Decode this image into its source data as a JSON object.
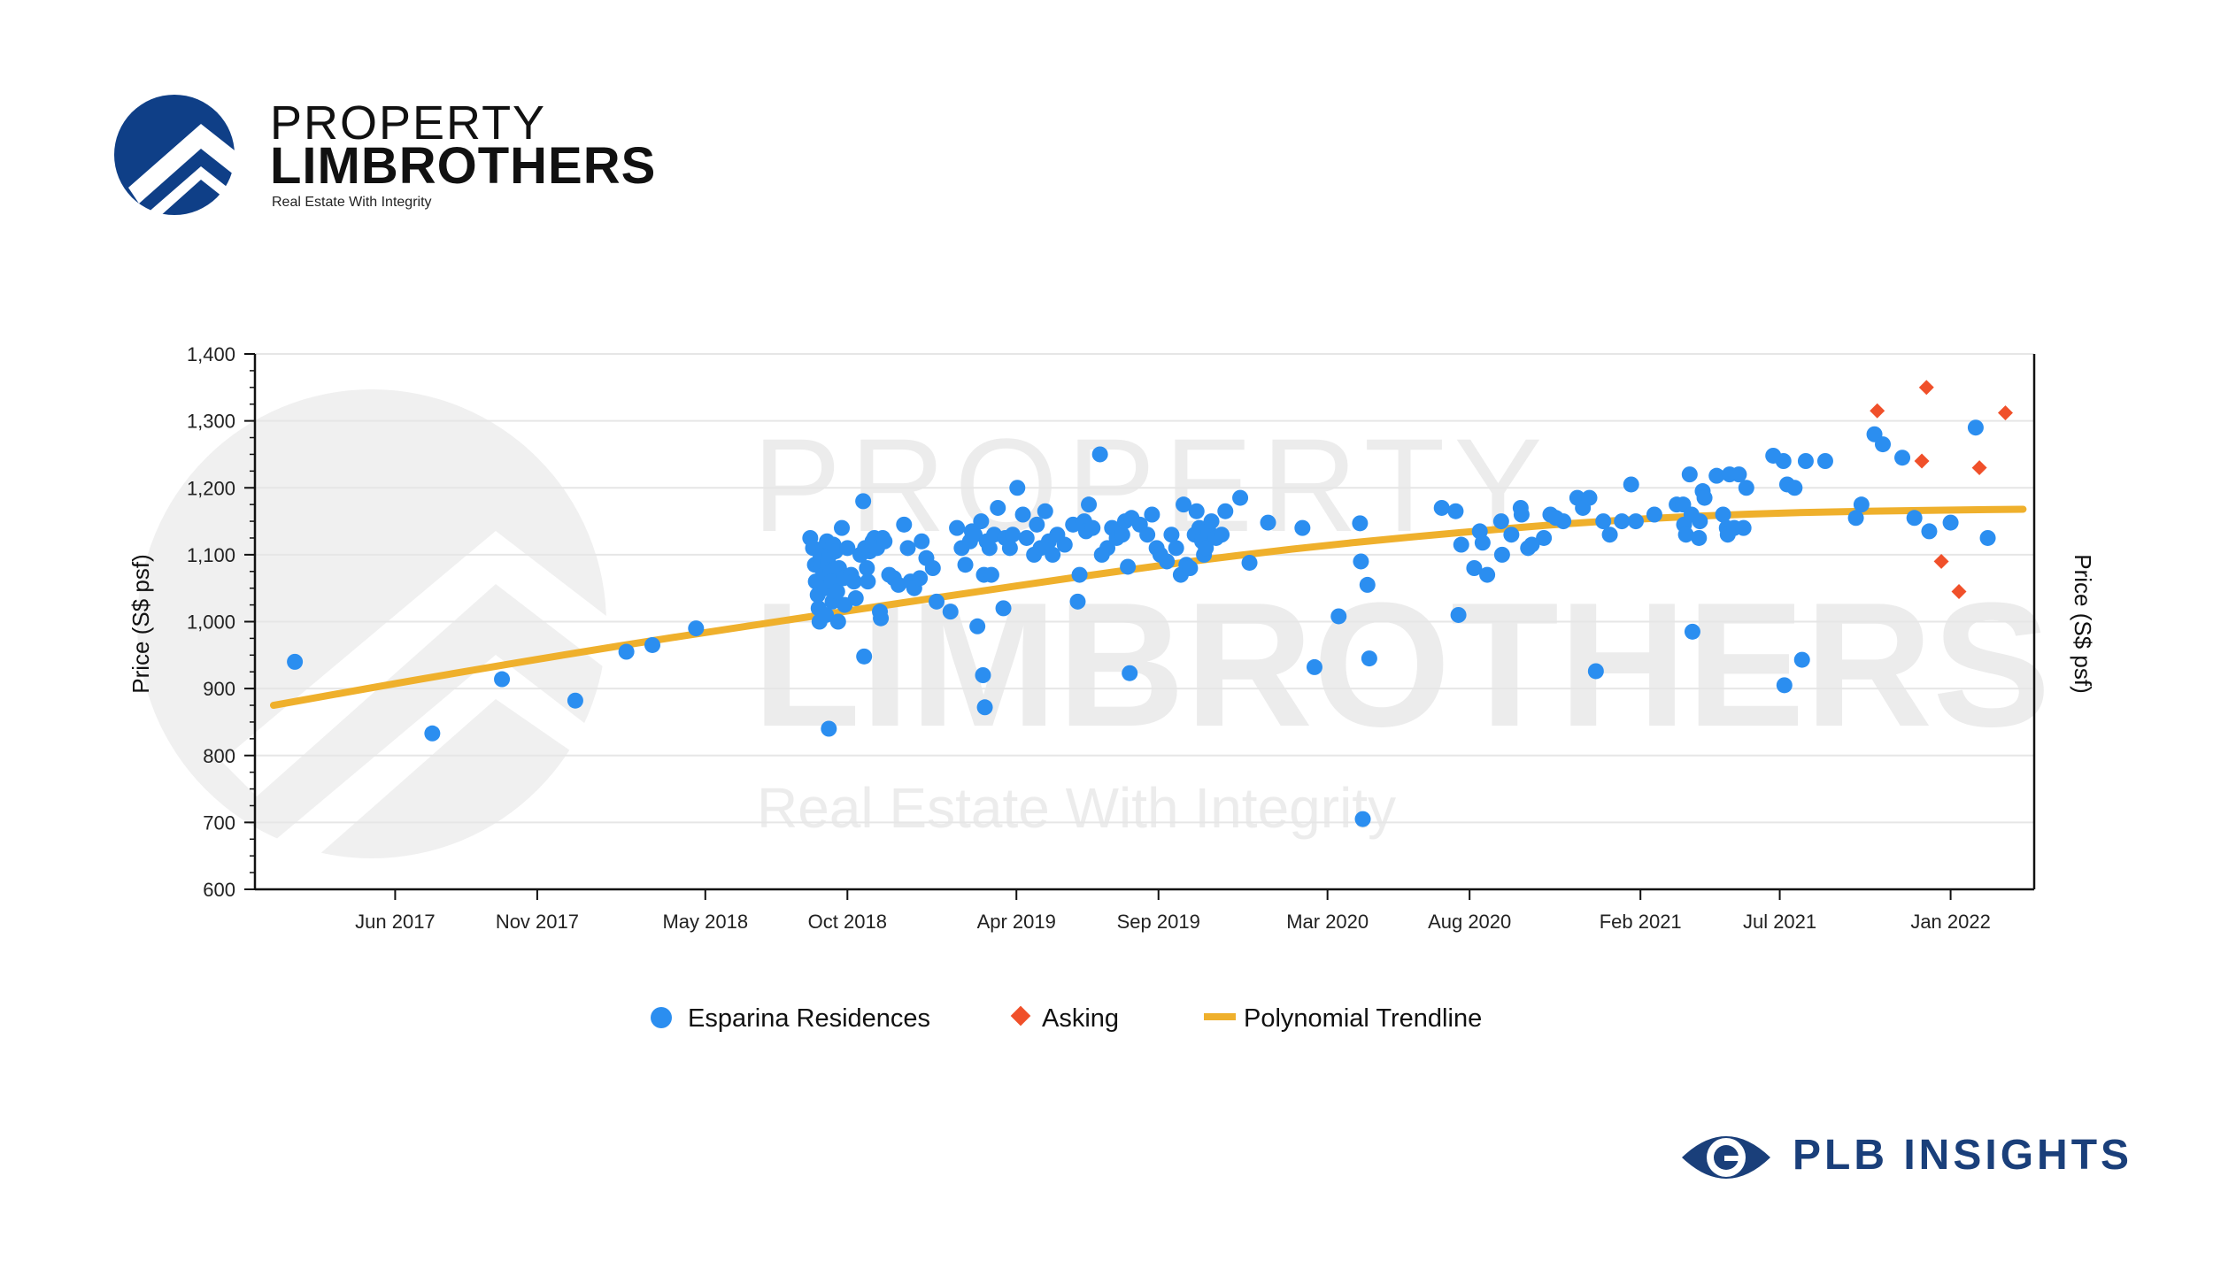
{
  "brand": {
    "line1": "PROPERTY",
    "line2": "LIMBROTHERS",
    "tagline": "Real Estate With Integrity",
    "color": "#0f3f87",
    "insights_label": "PLB INSIGHTS",
    "insights_color": "#1a3f7a"
  },
  "chart_data": {
    "type": "scatter",
    "title": "",
    "xlabel": "",
    "ylabel": "Price (S$ psf)",
    "ylabel_right": "Price (S$ psf)",
    "ylim": [
      600,
      1400
    ],
    "yticks": [
      600,
      700,
      800,
      900,
      1000,
      1100,
      1200,
      1300,
      1400
    ],
    "ytick_labels": [
      "600",
      "700",
      "800",
      "900",
      "1,000",
      "1,100",
      "1,200",
      "1,300",
      "1,400"
    ],
    "xlim": [
      "2017-01-01",
      "2022-04-01"
    ],
    "xticks": [
      "2017-06-01",
      "2017-11-01",
      "2018-05-01",
      "2018-10-01",
      "2019-04-01",
      "2019-09-01",
      "2020-03-01",
      "2020-08-01",
      "2021-02-01",
      "2021-07-01",
      "2022-01-01"
    ],
    "xtick_labels": [
      "Jun 2017",
      "Nov 2017",
      "May 2018",
      "Oct 2018",
      "Apr 2019",
      "Sep 2019",
      "Mar 2020",
      "Aug 2020",
      "Feb 2021",
      "Jul 2021",
      "Jan 2022"
    ],
    "grid": true,
    "legend_position": "bottom",
    "series": [
      {
        "name": "Esparina Residences",
        "marker": "circle",
        "color": "#2b8ef0",
        "points": [
          [
            "2017-02-13",
            940
          ],
          [
            "2017-07-11",
            833
          ],
          [
            "2017-09-24",
            914
          ],
          [
            "2017-12-12",
            882
          ],
          [
            "2018-02-05",
            955
          ],
          [
            "2018-03-05",
            965
          ],
          [
            "2018-04-21",
            990
          ],
          [
            "2018-08-22",
            1125
          ],
          [
            "2018-08-25",
            1110
          ],
          [
            "2018-08-27",
            1085
          ],
          [
            "2018-08-28",
            1060
          ],
          [
            "2018-08-30",
            1040
          ],
          [
            "2018-08-31",
            1020
          ],
          [
            "2018-09-01",
            1000
          ],
          [
            "2018-09-02",
            1095
          ],
          [
            "2018-09-03",
            1080
          ],
          [
            "2018-09-05",
            1110
          ],
          [
            "2018-09-06",
            1070
          ],
          [
            "2018-09-07",
            1050
          ],
          [
            "2018-09-08",
            1010
          ],
          [
            "2018-09-09",
            1120
          ],
          [
            "2018-09-10",
            1090
          ],
          [
            "2018-09-11",
            840
          ],
          [
            "2018-09-12",
            1100
          ],
          [
            "2018-09-13",
            1075
          ],
          [
            "2018-09-14",
            1060
          ],
          [
            "2018-09-15",
            1030
          ],
          [
            "2018-09-16",
            1115
          ],
          [
            "2018-09-18",
            1105
          ],
          [
            "2018-09-20",
            1045
          ],
          [
            "2018-09-21",
            1000
          ],
          [
            "2018-09-22",
            1080
          ],
          [
            "2018-09-25",
            1140
          ],
          [
            "2018-09-27",
            1065
          ],
          [
            "2018-09-28",
            1025
          ],
          [
            "2018-10-01",
            1110
          ],
          [
            "2018-10-05",
            1070
          ],
          [
            "2018-10-08",
            1060
          ],
          [
            "2018-10-10",
            1035
          ],
          [
            "2018-10-15",
            1100
          ],
          [
            "2018-10-18",
            1180
          ],
          [
            "2018-10-19",
            948
          ],
          [
            "2018-10-20",
            1110
          ],
          [
            "2018-10-22",
            1080
          ],
          [
            "2018-10-23",
            1060
          ],
          [
            "2018-10-25",
            1105
          ],
          [
            "2018-10-28",
            1120
          ],
          [
            "2018-10-30",
            1125
          ],
          [
            "2018-11-02",
            1110
          ],
          [
            "2018-11-05",
            1015
          ],
          [
            "2018-11-06",
            1005
          ],
          [
            "2018-11-08",
            1125
          ],
          [
            "2018-11-10",
            1120
          ],
          [
            "2018-11-15",
            1070
          ],
          [
            "2018-11-20",
            1065
          ],
          [
            "2018-11-25",
            1055
          ],
          [
            "2018-12-01",
            1145
          ],
          [
            "2018-12-05",
            1110
          ],
          [
            "2018-12-08",
            1060
          ],
          [
            "2018-12-12",
            1050
          ],
          [
            "2018-12-18",
            1065
          ],
          [
            "2018-12-20",
            1120
          ],
          [
            "2018-12-25",
            1095
          ],
          [
            "2019-01-01",
            1080
          ],
          [
            "2019-01-05",
            1030
          ],
          [
            "2019-01-20",
            1015
          ],
          [
            "2019-01-27",
            1140
          ],
          [
            "2019-02-01",
            1110
          ],
          [
            "2019-02-05",
            1085
          ],
          [
            "2019-02-10",
            1120
          ],
          [
            "2019-02-12",
            1135
          ],
          [
            "2019-02-15",
            1130
          ],
          [
            "2019-02-18",
            993
          ],
          [
            "2019-02-22",
            1150
          ],
          [
            "2019-02-24",
            920
          ],
          [
            "2019-02-25",
            1070
          ],
          [
            "2019-02-26",
            872
          ],
          [
            "2019-02-28",
            1120
          ],
          [
            "2019-03-03",
            1110
          ],
          [
            "2019-03-05",
            1070
          ],
          [
            "2019-03-08",
            1130
          ],
          [
            "2019-03-12",
            1170
          ],
          [
            "2019-03-18",
            1020
          ],
          [
            "2019-03-20",
            1125
          ],
          [
            "2019-03-25",
            1110
          ],
          [
            "2019-03-28",
            1130
          ],
          [
            "2019-04-02",
            1200
          ],
          [
            "2019-04-08",
            1160
          ],
          [
            "2019-04-12",
            1125
          ],
          [
            "2019-04-20",
            1100
          ],
          [
            "2019-04-23",
            1145
          ],
          [
            "2019-04-27",
            1110
          ],
          [
            "2019-05-02",
            1165
          ],
          [
            "2019-05-06",
            1120
          ],
          [
            "2019-05-10",
            1100
          ],
          [
            "2019-05-15",
            1130
          ],
          [
            "2019-05-23",
            1115
          ],
          [
            "2019-06-01",
            1145
          ],
          [
            "2019-06-06",
            1030
          ],
          [
            "2019-06-08",
            1070
          ],
          [
            "2019-06-13",
            1150
          ],
          [
            "2019-06-15",
            1135
          ],
          [
            "2019-06-18",
            1175
          ],
          [
            "2019-06-22",
            1140
          ],
          [
            "2019-06-30",
            1250
          ],
          [
            "2019-07-02",
            1100
          ],
          [
            "2019-07-08",
            1110
          ],
          [
            "2019-07-13",
            1140
          ],
          [
            "2019-07-18",
            1125
          ],
          [
            "2019-07-24",
            1130
          ],
          [
            "2019-07-27",
            1150
          ],
          [
            "2019-07-30",
            1082
          ],
          [
            "2019-08-01",
            923
          ],
          [
            "2019-08-03",
            1155
          ],
          [
            "2019-08-12",
            1145
          ],
          [
            "2019-08-20",
            1130
          ],
          [
            "2019-08-25",
            1160
          ],
          [
            "2019-08-30",
            1110
          ],
          [
            "2019-09-03",
            1100
          ],
          [
            "2019-09-10",
            1090
          ],
          [
            "2019-09-15",
            1130
          ],
          [
            "2019-09-20",
            1110
          ],
          [
            "2019-09-25",
            1070
          ],
          [
            "2019-09-28",
            1175
          ],
          [
            "2019-10-01",
            1085
          ],
          [
            "2019-10-05",
            1080
          ],
          [
            "2019-10-10",
            1130
          ],
          [
            "2019-10-12",
            1165
          ],
          [
            "2019-10-15",
            1140
          ],
          [
            "2019-10-18",
            1120
          ],
          [
            "2019-10-20",
            1100
          ],
          [
            "2019-10-22",
            1110
          ],
          [
            "2019-10-25",
            1135
          ],
          [
            "2019-10-28",
            1150
          ],
          [
            "2019-11-02",
            1125
          ],
          [
            "2019-11-08",
            1130
          ],
          [
            "2019-11-12",
            1165
          ],
          [
            "2019-11-28",
            1185
          ],
          [
            "2019-12-08",
            1088
          ],
          [
            "2019-12-28",
            1148
          ],
          [
            "2020-02-03",
            1140
          ],
          [
            "2020-02-16",
            932
          ],
          [
            "2020-03-13",
            1008
          ],
          [
            "2020-04-05",
            1147
          ],
          [
            "2020-04-06",
            1090
          ],
          [
            "2020-04-08",
            705
          ],
          [
            "2020-04-13",
            1055
          ],
          [
            "2020-04-15",
            945
          ],
          [
            "2020-07-02",
            1170
          ],
          [
            "2020-07-17",
            1165
          ],
          [
            "2020-07-20",
            1010
          ],
          [
            "2020-07-23",
            1115
          ],
          [
            "2020-08-06",
            1080
          ],
          [
            "2020-08-12",
            1135
          ],
          [
            "2020-08-15",
            1118
          ],
          [
            "2020-08-20",
            1070
          ],
          [
            "2020-09-04",
            1150
          ],
          [
            "2020-09-05",
            1100
          ],
          [
            "2020-09-15",
            1130
          ],
          [
            "2020-09-25",
            1170
          ],
          [
            "2020-09-26",
            1160
          ],
          [
            "2020-10-03",
            1110
          ],
          [
            "2020-10-07",
            1115
          ],
          [
            "2020-10-20",
            1125
          ],
          [
            "2020-10-27",
            1160
          ],
          [
            "2020-11-02",
            1155
          ],
          [
            "2020-11-10",
            1150
          ],
          [
            "2020-11-25",
            1185
          ],
          [
            "2020-12-01",
            1170
          ],
          [
            "2020-12-08",
            1185
          ],
          [
            "2020-12-15",
            926
          ],
          [
            "2020-12-23",
            1150
          ],
          [
            "2020-12-30",
            1130
          ],
          [
            "2021-01-12",
            1150
          ],
          [
            "2021-01-22",
            1205
          ],
          [
            "2021-01-27",
            1150
          ],
          [
            "2021-02-16",
            1160
          ],
          [
            "2021-03-12",
            1175
          ],
          [
            "2021-03-19",
            1175
          ],
          [
            "2021-03-20",
            1145
          ],
          [
            "2021-03-22",
            1130
          ],
          [
            "2021-03-26",
            1220
          ],
          [
            "2021-03-28",
            1160
          ],
          [
            "2021-03-29",
            985
          ],
          [
            "2021-04-05",
            1125
          ],
          [
            "2021-04-06",
            1150
          ],
          [
            "2021-04-09",
            1195
          ],
          [
            "2021-04-11",
            1185
          ],
          [
            "2021-04-24",
            1218
          ],
          [
            "2021-05-01",
            1160
          ],
          [
            "2021-05-05",
            1140
          ],
          [
            "2021-05-06",
            1130
          ],
          [
            "2021-05-08",
            1220
          ],
          [
            "2021-05-13",
            1140
          ],
          [
            "2021-05-18",
            1220
          ],
          [
            "2021-05-23",
            1140
          ],
          [
            "2021-05-26",
            1200
          ],
          [
            "2021-06-24",
            1248
          ],
          [
            "2021-07-05",
            1240
          ],
          [
            "2021-07-06",
            905
          ],
          [
            "2021-07-09",
            1205
          ],
          [
            "2021-07-17",
            1200
          ],
          [
            "2021-07-25",
            943
          ],
          [
            "2021-07-29",
            1240
          ],
          [
            "2021-08-19",
            1240
          ],
          [
            "2021-09-21",
            1155
          ],
          [
            "2021-09-27",
            1175
          ],
          [
            "2021-10-11",
            1280
          ],
          [
            "2021-10-20",
            1265
          ],
          [
            "2021-11-10",
            1245
          ],
          [
            "2021-11-23",
            1155
          ],
          [
            "2021-12-09",
            1135
          ],
          [
            "2022-01-01",
            1148
          ],
          [
            "2022-01-28",
            1290
          ],
          [
            "2022-02-10",
            1125
          ]
        ]
      },
      {
        "name": "Asking",
        "marker": "diamond",
        "color": "#f0502a",
        "points": [
          [
            "2021-10-14",
            1315
          ],
          [
            "2021-12-01",
            1240
          ],
          [
            "2021-12-06",
            1350
          ],
          [
            "2021-12-22",
            1090
          ],
          [
            "2022-01-10",
            1045
          ],
          [
            "2022-02-01",
            1230
          ],
          [
            "2022-03-01",
            1312
          ]
        ]
      },
      {
        "name": "Polynomial Trendline",
        "marker": "line",
        "color": "#efb02c",
        "points": [
          [
            "2017-01-21",
            875
          ],
          [
            "2017-07-01",
            915
          ],
          [
            "2018-01-01",
            958
          ],
          [
            "2018-07-01",
            997
          ],
          [
            "2019-01-01",
            1035
          ],
          [
            "2019-07-01",
            1072
          ],
          [
            "2020-01-01",
            1106
          ],
          [
            "2020-07-01",
            1131
          ],
          [
            "2021-01-01",
            1152
          ],
          [
            "2021-07-01",
            1163
          ],
          [
            "2022-01-01",
            1167
          ],
          [
            "2022-03-20",
            1168
          ]
        ]
      }
    ]
  }
}
